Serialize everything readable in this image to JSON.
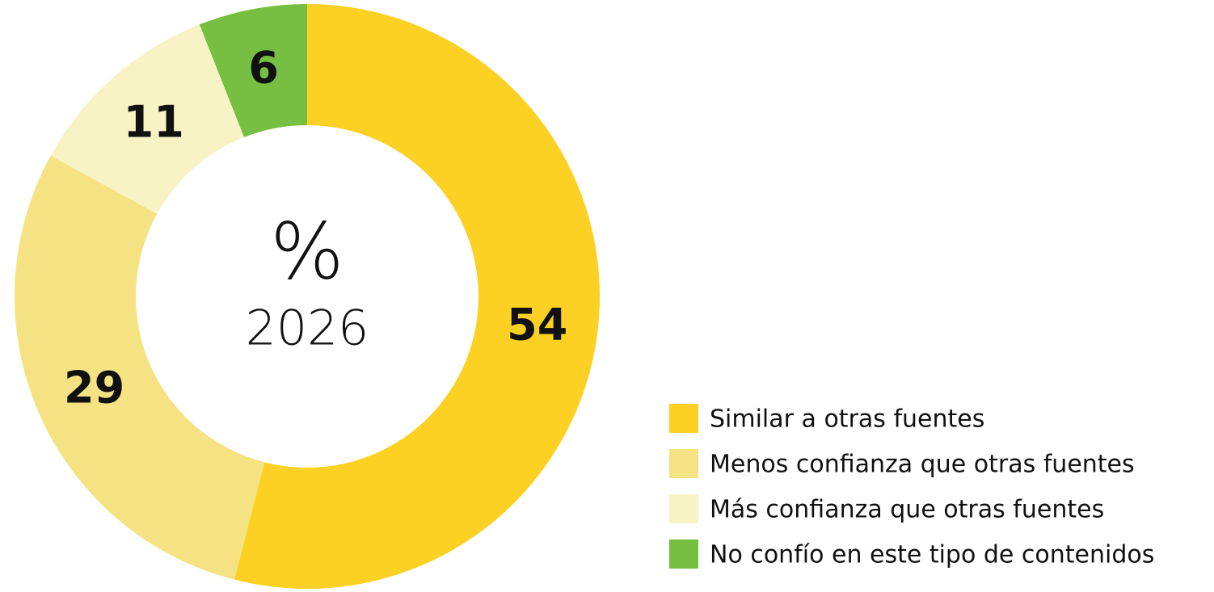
{
  "chart_data": {
    "type": "donut",
    "center_label": "%",
    "center_sublabel": "2026",
    "categories": [
      "Similar a otras fuentes",
      "Menos confianza que otras fuentes",
      "Más confianza que otras fuentes",
      "No confío en este tipo de contenidos"
    ],
    "values": [
      54,
      29,
      11,
      6
    ],
    "colors": [
      "#fcd123",
      "#f5e383",
      "#f8f3c5",
      "#76bf43"
    ],
    "legend": "bottom-right"
  }
}
